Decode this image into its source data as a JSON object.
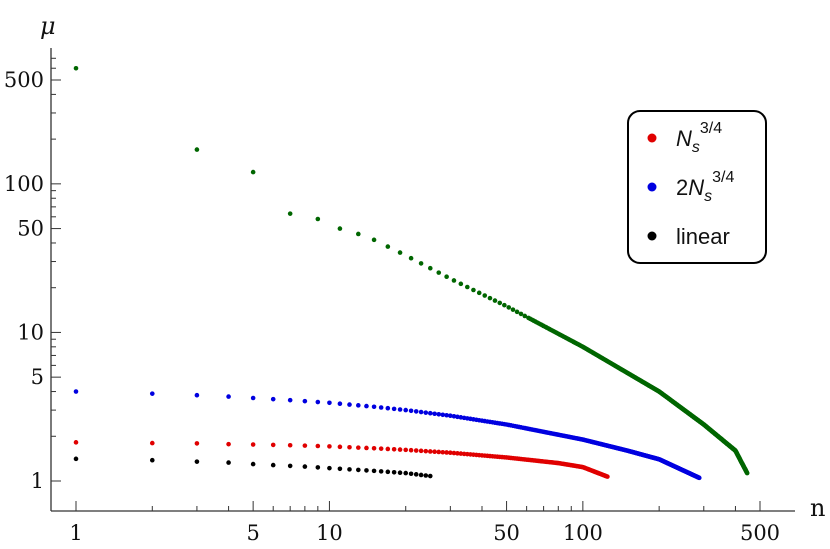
{
  "chart_data": {
    "type": "scatter",
    "title": "",
    "xlabel": "n",
    "ylabel": "μ",
    "xscale": "log",
    "yscale": "log",
    "xlim": [
      0.85,
      500
    ],
    "ylim": [
      0.8,
      750
    ],
    "x_ticks": [
      1,
      5,
      10,
      50,
      100,
      500
    ],
    "y_ticks": [
      1,
      5,
      10,
      50,
      100,
      500
    ],
    "grid": false,
    "legend": "right",
    "series": [
      {
        "name": "N_s^{3/4}",
        "legend_main": "N",
        "legend_sub": "s",
        "legend_sup": "3/4",
        "color": "#e00000",
        "model": {
          "n_max": 125,
          "tail": "concave-drop"
        },
        "points": [
          [
            1,
            1.82
          ],
          [
            2,
            1.8
          ],
          [
            3,
            1.79
          ],
          [
            4,
            1.77
          ],
          [
            5,
            1.76
          ],
          [
            6,
            1.75
          ],
          [
            7,
            1.74
          ],
          [
            8,
            1.73
          ],
          [
            9,
            1.72
          ],
          [
            10,
            1.71
          ],
          [
            15,
            1.66
          ],
          [
            20,
            1.62
          ],
          [
            30,
            1.55
          ],
          [
            50,
            1.44
          ],
          [
            80,
            1.32
          ],
          [
            100,
            1.24
          ],
          [
            125,
            1.07
          ]
        ]
      },
      {
        "name": "2N_s^{3/4}",
        "legend_prefix": "2",
        "legend_main": "N",
        "legend_sub": "s",
        "legend_sup": "3/4",
        "color": "#0000e0",
        "model": {
          "n_max": 288,
          "tail": "concave-drop"
        },
        "points": [
          [
            1,
            4.0
          ],
          [
            2,
            3.87
          ],
          [
            3,
            3.78
          ],
          [
            4,
            3.7
          ],
          [
            5,
            3.62
          ],
          [
            7,
            3.5
          ],
          [
            10,
            3.36
          ],
          [
            15,
            3.16
          ],
          [
            20,
            3.0
          ],
          [
            30,
            2.75
          ],
          [
            50,
            2.4
          ],
          [
            100,
            1.9
          ],
          [
            150,
            1.6
          ],
          [
            200,
            1.4
          ],
          [
            288,
            1.05
          ]
        ]
      },
      {
        "name": "linear",
        "legend_main": "linear",
        "color": "#000000",
        "model": {
          "n_max": 25,
          "tail": "concave-drop"
        },
        "points": [
          [
            1,
            1.41
          ],
          [
            2,
            1.38
          ],
          [
            3,
            1.35
          ],
          [
            4,
            1.33
          ],
          [
            5,
            1.3
          ],
          [
            6,
            1.28
          ],
          [
            8,
            1.25
          ],
          [
            10,
            1.22
          ],
          [
            15,
            1.17
          ],
          [
            20,
            1.13
          ],
          [
            25,
            1.08
          ]
        ]
      },
      {
        "name": "green",
        "color": "#006600",
        "model": {
          "n_max": 445,
          "tail": "concave-drop"
        },
        "points": [
          [
            1,
            600
          ],
          [
            3,
            170
          ],
          [
            5,
            120
          ],
          [
            7,
            63
          ],
          [
            9,
            58
          ],
          [
            11,
            50
          ],
          [
            13,
            46
          ],
          [
            15,
            42
          ],
          [
            20,
            33
          ],
          [
            30,
            23
          ],
          [
            50,
            15
          ],
          [
            100,
            8
          ],
          [
            200,
            4
          ],
          [
            300,
            2.4
          ],
          [
            400,
            1.6
          ],
          [
            445,
            1.13
          ]
        ]
      }
    ]
  }
}
